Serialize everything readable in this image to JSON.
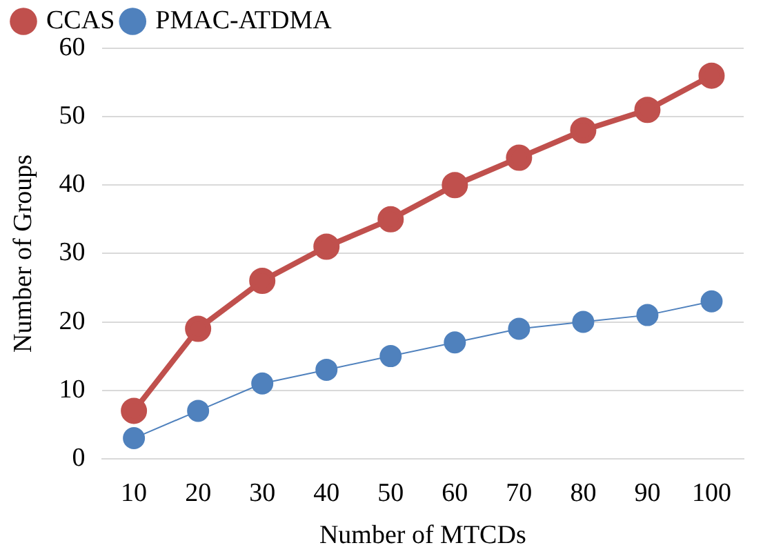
{
  "chart_data": {
    "type": "line",
    "xlabel": "Number of MTCDs",
    "ylabel": "Number of Groups",
    "categories": [
      "10",
      "20",
      "30",
      "40",
      "50",
      "60",
      "70",
      "80",
      "90",
      "100"
    ],
    "series": [
      {
        "name": "CCAS",
        "color": "#c0504d",
        "values": [
          7,
          19,
          26,
          31,
          35,
          40,
          44,
          48,
          51,
          56
        ]
      },
      {
        "name": "PMAC-ATDMA",
        "color": "#4f81bd",
        "values": [
          3,
          7,
          11,
          13,
          15,
          17,
          19,
          20,
          21,
          23
        ]
      }
    ],
    "ylim": [
      0,
      60
    ],
    "yticks": [
      0,
      10,
      20,
      30,
      40,
      50,
      60
    ],
    "grid": "y",
    "legend": "top left",
    "marker": "circle",
    "line_style": "solid"
  }
}
